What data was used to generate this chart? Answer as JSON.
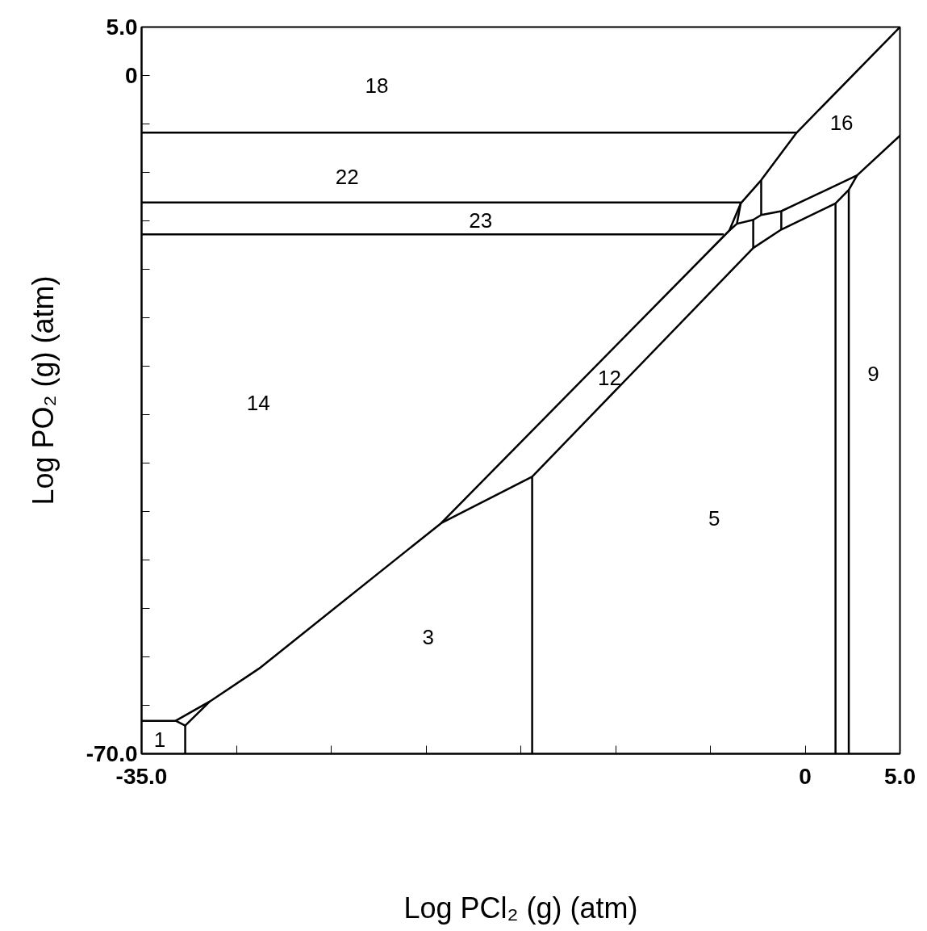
{
  "chart_data": {
    "type": "line",
    "xlabel": "Log PCl₂ (g) (atm)",
    "ylabel": "Log PO₂ (g) (atm)",
    "xlim": [
      -35.0,
      5.0
    ],
    "ylim": [
      -70.0,
      5.0
    ],
    "xticks": [
      {
        "value": -35,
        "label": "-35.0"
      },
      {
        "value": -30,
        "label": null
      },
      {
        "value": -25,
        "label": null
      },
      {
        "value": -20,
        "label": null
      },
      {
        "value": -15,
        "label": null
      },
      {
        "value": -10,
        "label": null
      },
      {
        "value": -5,
        "label": null
      },
      0,
      {
        "value": 5,
        "label": "5.0"
      }
    ],
    "yticks": [
      {
        "value": -70,
        "label": "-70.0"
      },
      {
        "value": -65,
        "label": null
      },
      {
        "value": -60,
        "label": null
      },
      {
        "value": -55,
        "label": null
      },
      {
        "value": -50,
        "label": null
      },
      {
        "value": -45,
        "label": null
      },
      {
        "value": -40,
        "label": null
      },
      {
        "value": -35,
        "label": null
      },
      {
        "value": -30,
        "label": null
      },
      {
        "value": -25,
        "label": null
      },
      {
        "value": -20,
        "label": null
      },
      {
        "value": -15,
        "label": null
      },
      {
        "value": -10,
        "label": null
      },
      {
        "value": -5,
        "label": null
      },
      0,
      {
        "value": 5,
        "label": "5.0"
      }
    ],
    "grid": false,
    "marker": "none",
    "line_style": "solid",
    "series": [
      {
        "color": "#000000",
        "x": [
          -35.0,
          -0.45
        ],
        "values": [
          -5.9,
          -5.9
        ]
      },
      {
        "color": "#000000",
        "x": [
          -35.0,
          -3.4
        ],
        "values": [
          -13.1,
          -13.1
        ]
      },
      {
        "color": "#000000",
        "x": [
          -35.0,
          -4.3
        ],
        "values": [
          -16.4,
          -16.4
        ]
      },
      {
        "color": "#000000",
        "x": [
          5.0,
          -0.45,
          -2.32,
          -3.4,
          -4.0,
          -19.2,
          -28.8,
          -31.4,
          -33.2
        ],
        "values": [
          5.0,
          -5.9,
          -10.8,
          -13.2,
          -16.0,
          -46.2,
          -61.2,
          -64.6,
          -66.6
        ]
      },
      {
        "color": "#000000",
        "x": [
          -35.0,
          -33.2,
          -32.7,
          -31.4
        ],
        "values": [
          -66.6,
          -66.6,
          -67.1,
          -64.6
        ]
      },
      {
        "color": "#000000",
        "x": [
          -32.7,
          -32.7
        ],
        "values": [
          -67.1,
          -70.0
        ]
      },
      {
        "color": "#000000",
        "x": [
          -19.2,
          -14.4,
          -14.4
        ],
        "values": [
          -46.2,
          -41.4,
          -70.0
        ]
      },
      {
        "color": "#000000",
        "x": [
          -14.4,
          -2.74,
          -1.26,
          1.6,
          2.3,
          2.74
        ],
        "values": [
          -41.4,
          -17.8,
          -15.9,
          -13.2,
          -11.8,
          -10.3
        ]
      },
      {
        "color": "#000000",
        "x": [
          -3.4,
          -3.6,
          -4.0
        ],
        "values": [
          -13.2,
          -15.3,
          -16.0
        ]
      },
      {
        "color": "#000000",
        "x": [
          -3.6,
          -2.74,
          -2.32,
          -1.26,
          2.74,
          5.0
        ],
        "values": [
          -15.3,
          -14.9,
          -14.4,
          -14.0,
          -10.3,
          -6.2
        ]
      },
      {
        "color": "#000000",
        "x": [
          -2.32,
          -2.32
        ],
        "values": [
          -10.8,
          -14.4
        ]
      },
      {
        "color": "#000000",
        "x": [
          -2.74,
          -2.74
        ],
        "values": [
          -14.9,
          -17.8
        ]
      },
      {
        "color": "#000000",
        "x": [
          -1.26,
          -1.26
        ],
        "values": [
          -14.0,
          -15.9
        ]
      },
      {
        "color": "#000000",
        "x": [
          1.6,
          1.6
        ],
        "values": [
          -13.2,
          -70.0
        ]
      },
      {
        "color": "#000000",
        "x": [
          2.3,
          2.3
        ],
        "values": [
          -11.8,
          -70.0
        ]
      }
    ],
    "annotations": [
      "18",
      "22",
      "23",
      "16",
      "12",
      "14",
      "9",
      "5",
      "3",
      "1"
    ]
  }
}
